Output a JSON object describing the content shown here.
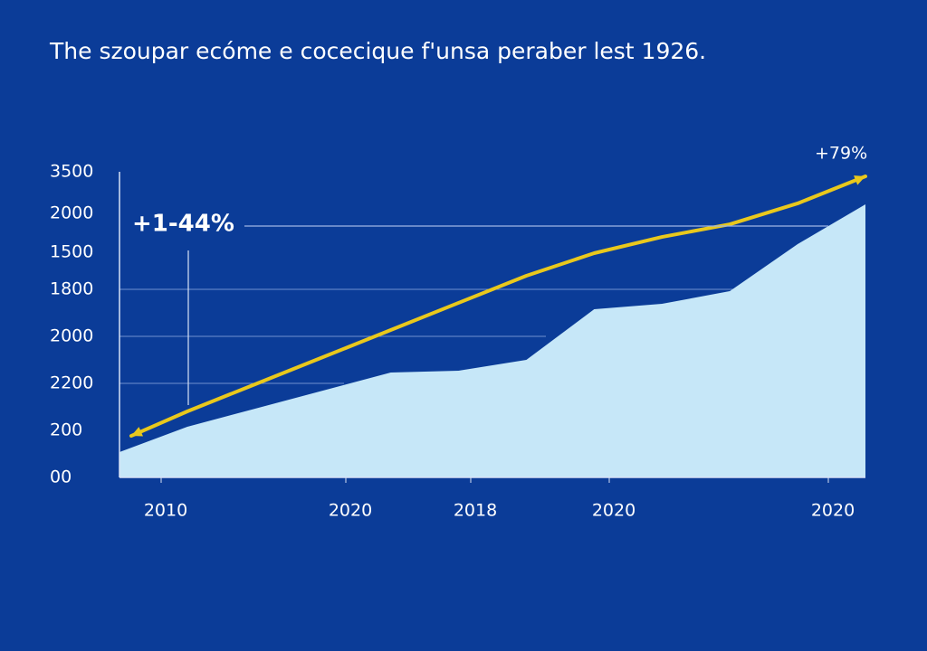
{
  "chart_data": {
    "type": "area",
    "subtitle": "The szoupar ecóme e cocecique f'unsa peraber lest 1926.",
    "y_axis_labels": [
      "3500",
      "2000",
      "1500",
      "1800",
      "2000",
      "2200",
      "200",
      "00"
    ],
    "x_axis_labels": [
      "2010",
      "2020",
      "2018",
      "2020",
      "2020"
    ],
    "ylim": [
      0,
      3500
    ],
    "series": [
      {
        "color": "#c6e7f8",
        "values": [
          290,
          580,
          787,
          994,
          1201,
          1222,
          1346,
          1926,
          1988,
          2133,
          2672,
          3127
        ]
      },
      {
        "color": "#e9c81c",
        "values": [
          476,
          756,
          1067,
          1377,
          1688,
          1999,
          2309,
          2568,
          2754,
          2899,
          3138,
          3448
        ]
      }
    ],
    "annotations": [
      "+1-44%",
      "+79%"
    ]
  }
}
